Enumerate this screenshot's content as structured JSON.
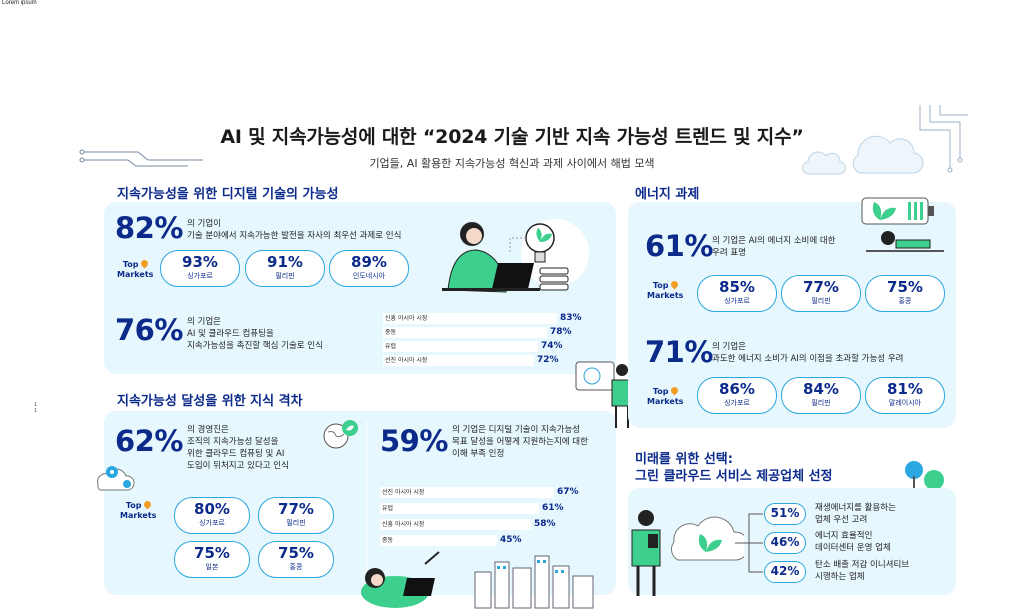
{
  "page": {
    "corner_text": "Lorem ipsum",
    "title": "AI 및 지속가능성에 대한 “2024 기술 기반 지속 가능성 트렌드 및 지수”",
    "subtitle": "기업들, AI 활용한 지속가능성 혁신과 과제 사이에서 해법 모색",
    "side_marks": "1\n1"
  },
  "digital": {
    "title": "지속가능성을 위한 디지털 기술의 가능성",
    "stat1": {
      "value": "82%",
      "desc_line1": "의 기업이",
      "desc_line2": "기술 분야에서 지속가능한 발전을 자사의 최우선 과제로 인식"
    },
    "top_markets_line1": "Top",
    "top_markets_line2": "Markets",
    "markets": [
      {
        "value": "93%",
        "label": "싱가포르"
      },
      {
        "value": "91%",
        "label": "필리핀"
      },
      {
        "value": "89%",
        "label": "인도네시아"
      }
    ],
    "stat2": {
      "value": "76%",
      "desc_line1": "의 기업은",
      "desc_line2": "AI 및 클라우드 컴퓨팅을",
      "desc_line3": "지속가능성을 촉진할 핵심 기술로 인식"
    },
    "bars": [
      {
        "label": "신흥 아시아 시장",
        "value": "83%",
        "pct": 83
      },
      {
        "label": "중동",
        "value": "78%",
        "pct": 78
      },
      {
        "label": "유럽",
        "value": "74%",
        "pct": 74
      },
      {
        "label": "선진 아시아 시장",
        "value": "72%",
        "pct": 72
      }
    ]
  },
  "gap": {
    "title": "지속가능성 달성을 위한 지식 격차",
    "stat1": {
      "value": "62%",
      "desc_line1": "의 경영진은",
      "desc_line2": "조직의 지속가능성 달성을",
      "desc_line3": "위한 클라우드 컴퓨팅 및 AI",
      "desc_line4": "도입이 뒤처지고 있다고 인식"
    },
    "top_markets_line1": "Top",
    "top_markets_line2": "Markets",
    "markets": [
      {
        "value": "80%",
        "label": "싱가포르"
      },
      {
        "value": "77%",
        "label": "필리핀"
      },
      {
        "value": "75%",
        "label": "일본"
      },
      {
        "value": "75%",
        "label": "홍콩"
      }
    ],
    "stat2": {
      "value": "59%",
      "desc_line1": "의 기업은 디지털 기술이 지속가능성",
      "desc_line2": "목표 달성을 어떻게 지원하는지에 대한",
      "desc_line3": "이해 부족 인정"
    },
    "bars": [
      {
        "label": "선진 아시아 시장",
        "value": "67%",
        "pct": 67
      },
      {
        "label": "유럽",
        "value": "61%",
        "pct": 61
      },
      {
        "label": "신흥 아시아 시장",
        "value": "58%",
        "pct": 58
      },
      {
        "label": "중동",
        "value": "45%",
        "pct": 45
      }
    ]
  },
  "energy": {
    "title": "에너지 과제",
    "stat1": {
      "value": "61%",
      "desc_line1": "의 기업은 AI의 에너지 소비에 대한",
      "desc_line2": "우려 표명"
    },
    "top_markets_line1": "Top",
    "top_markets_line2": "Markets",
    "markets1": [
      {
        "value": "85%",
        "label": "싱가포르"
      },
      {
        "value": "77%",
        "label": "필리핀"
      },
      {
        "value": "75%",
        "label": "홍콩"
      }
    ],
    "stat2": {
      "value": "71%",
      "desc_line1": "의 기업은",
      "desc_line2": "과도한 에너지 소비가 AI의 이점을 초과할 가능성 우려"
    },
    "markets2": [
      {
        "value": "86%",
        "label": "싱가포르"
      },
      {
        "value": "84%",
        "label": "필리핀"
      },
      {
        "value": "81%",
        "label": "말레이시아"
      }
    ]
  },
  "future": {
    "title_line1": "미래를 위한 선택:",
    "title_line2": "그린 클라우드 서비스 제공업체 선정",
    "items": [
      {
        "value": "51%",
        "line1": "재생에너지를 활용하는",
        "line2": "업체 우선 고려"
      },
      {
        "value": "46%",
        "line1": "에너지 효율적인",
        "line2": "데이터센터 운영 업체"
      },
      {
        "value": "42%",
        "line1": "탄소 배출 저감 이니셔티브",
        "line2": "시행하는 업체"
      }
    ]
  },
  "colors": {
    "navy": "#0b2a8a",
    "panel": "#e6f7fd",
    "accent": "#2aa7de",
    "green": "#3ccf8e",
    "pin": "#f29b25"
  }
}
